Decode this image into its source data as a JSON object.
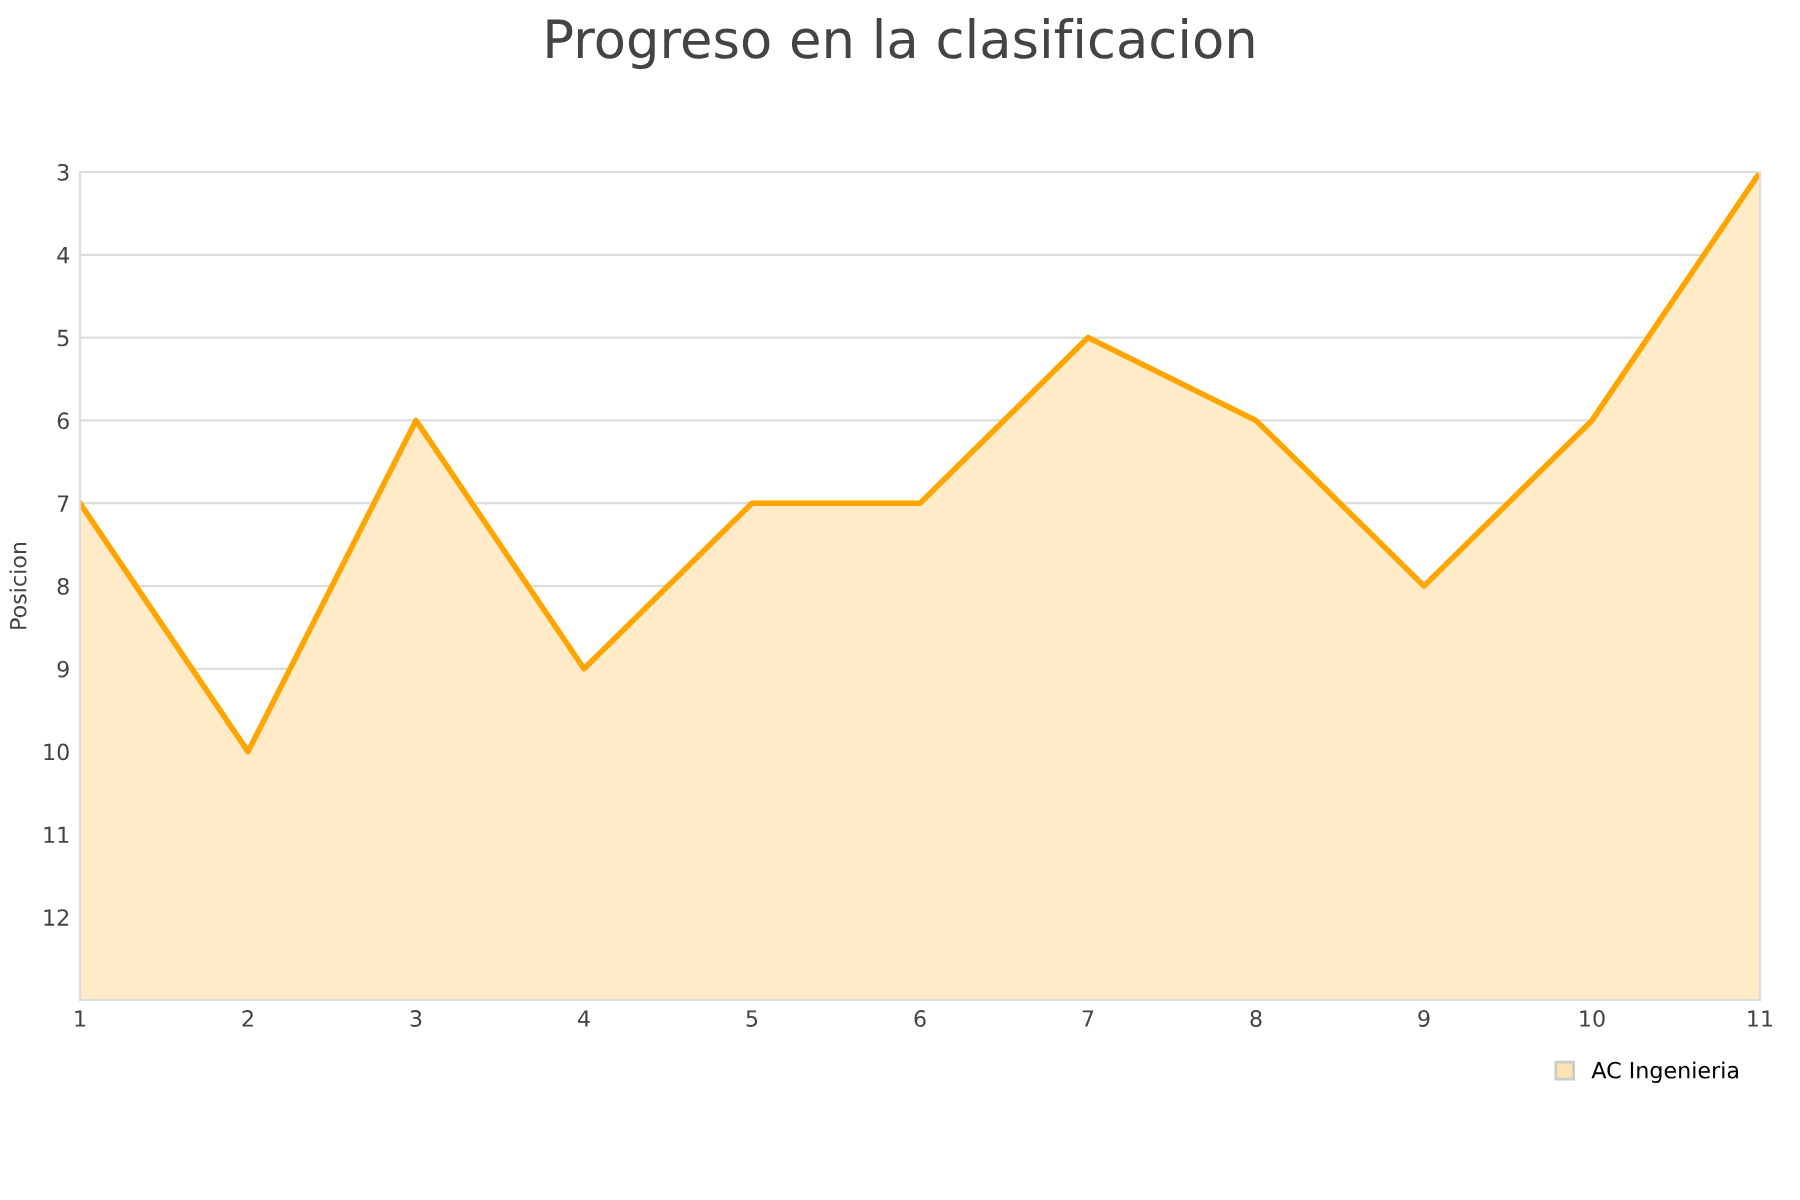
{
  "chart_data": {
    "type": "area",
    "title": "Progreso en la clasificacion",
    "ylabel": "Posicion",
    "x": [
      1,
      2,
      3,
      4,
      5,
      6,
      7,
      8,
      9,
      10,
      11
    ],
    "series": [
      {
        "name": "AC Ingenieria",
        "color": "#ffa500",
        "values": [
          7,
          10,
          6,
          9,
          7,
          7,
          5,
          6,
          8,
          6,
          3
        ]
      }
    ],
    "xlim": [
      1,
      11
    ],
    "xticks": [
      1,
      2,
      3,
      4,
      5,
      6,
      7,
      8,
      9,
      10,
      11
    ],
    "ylim": [
      13,
      3
    ],
    "yticks": [
      3,
      4,
      5,
      6,
      7,
      8,
      9,
      10,
      11,
      12
    ],
    "grid": "y",
    "legend": "bottom right"
  }
}
